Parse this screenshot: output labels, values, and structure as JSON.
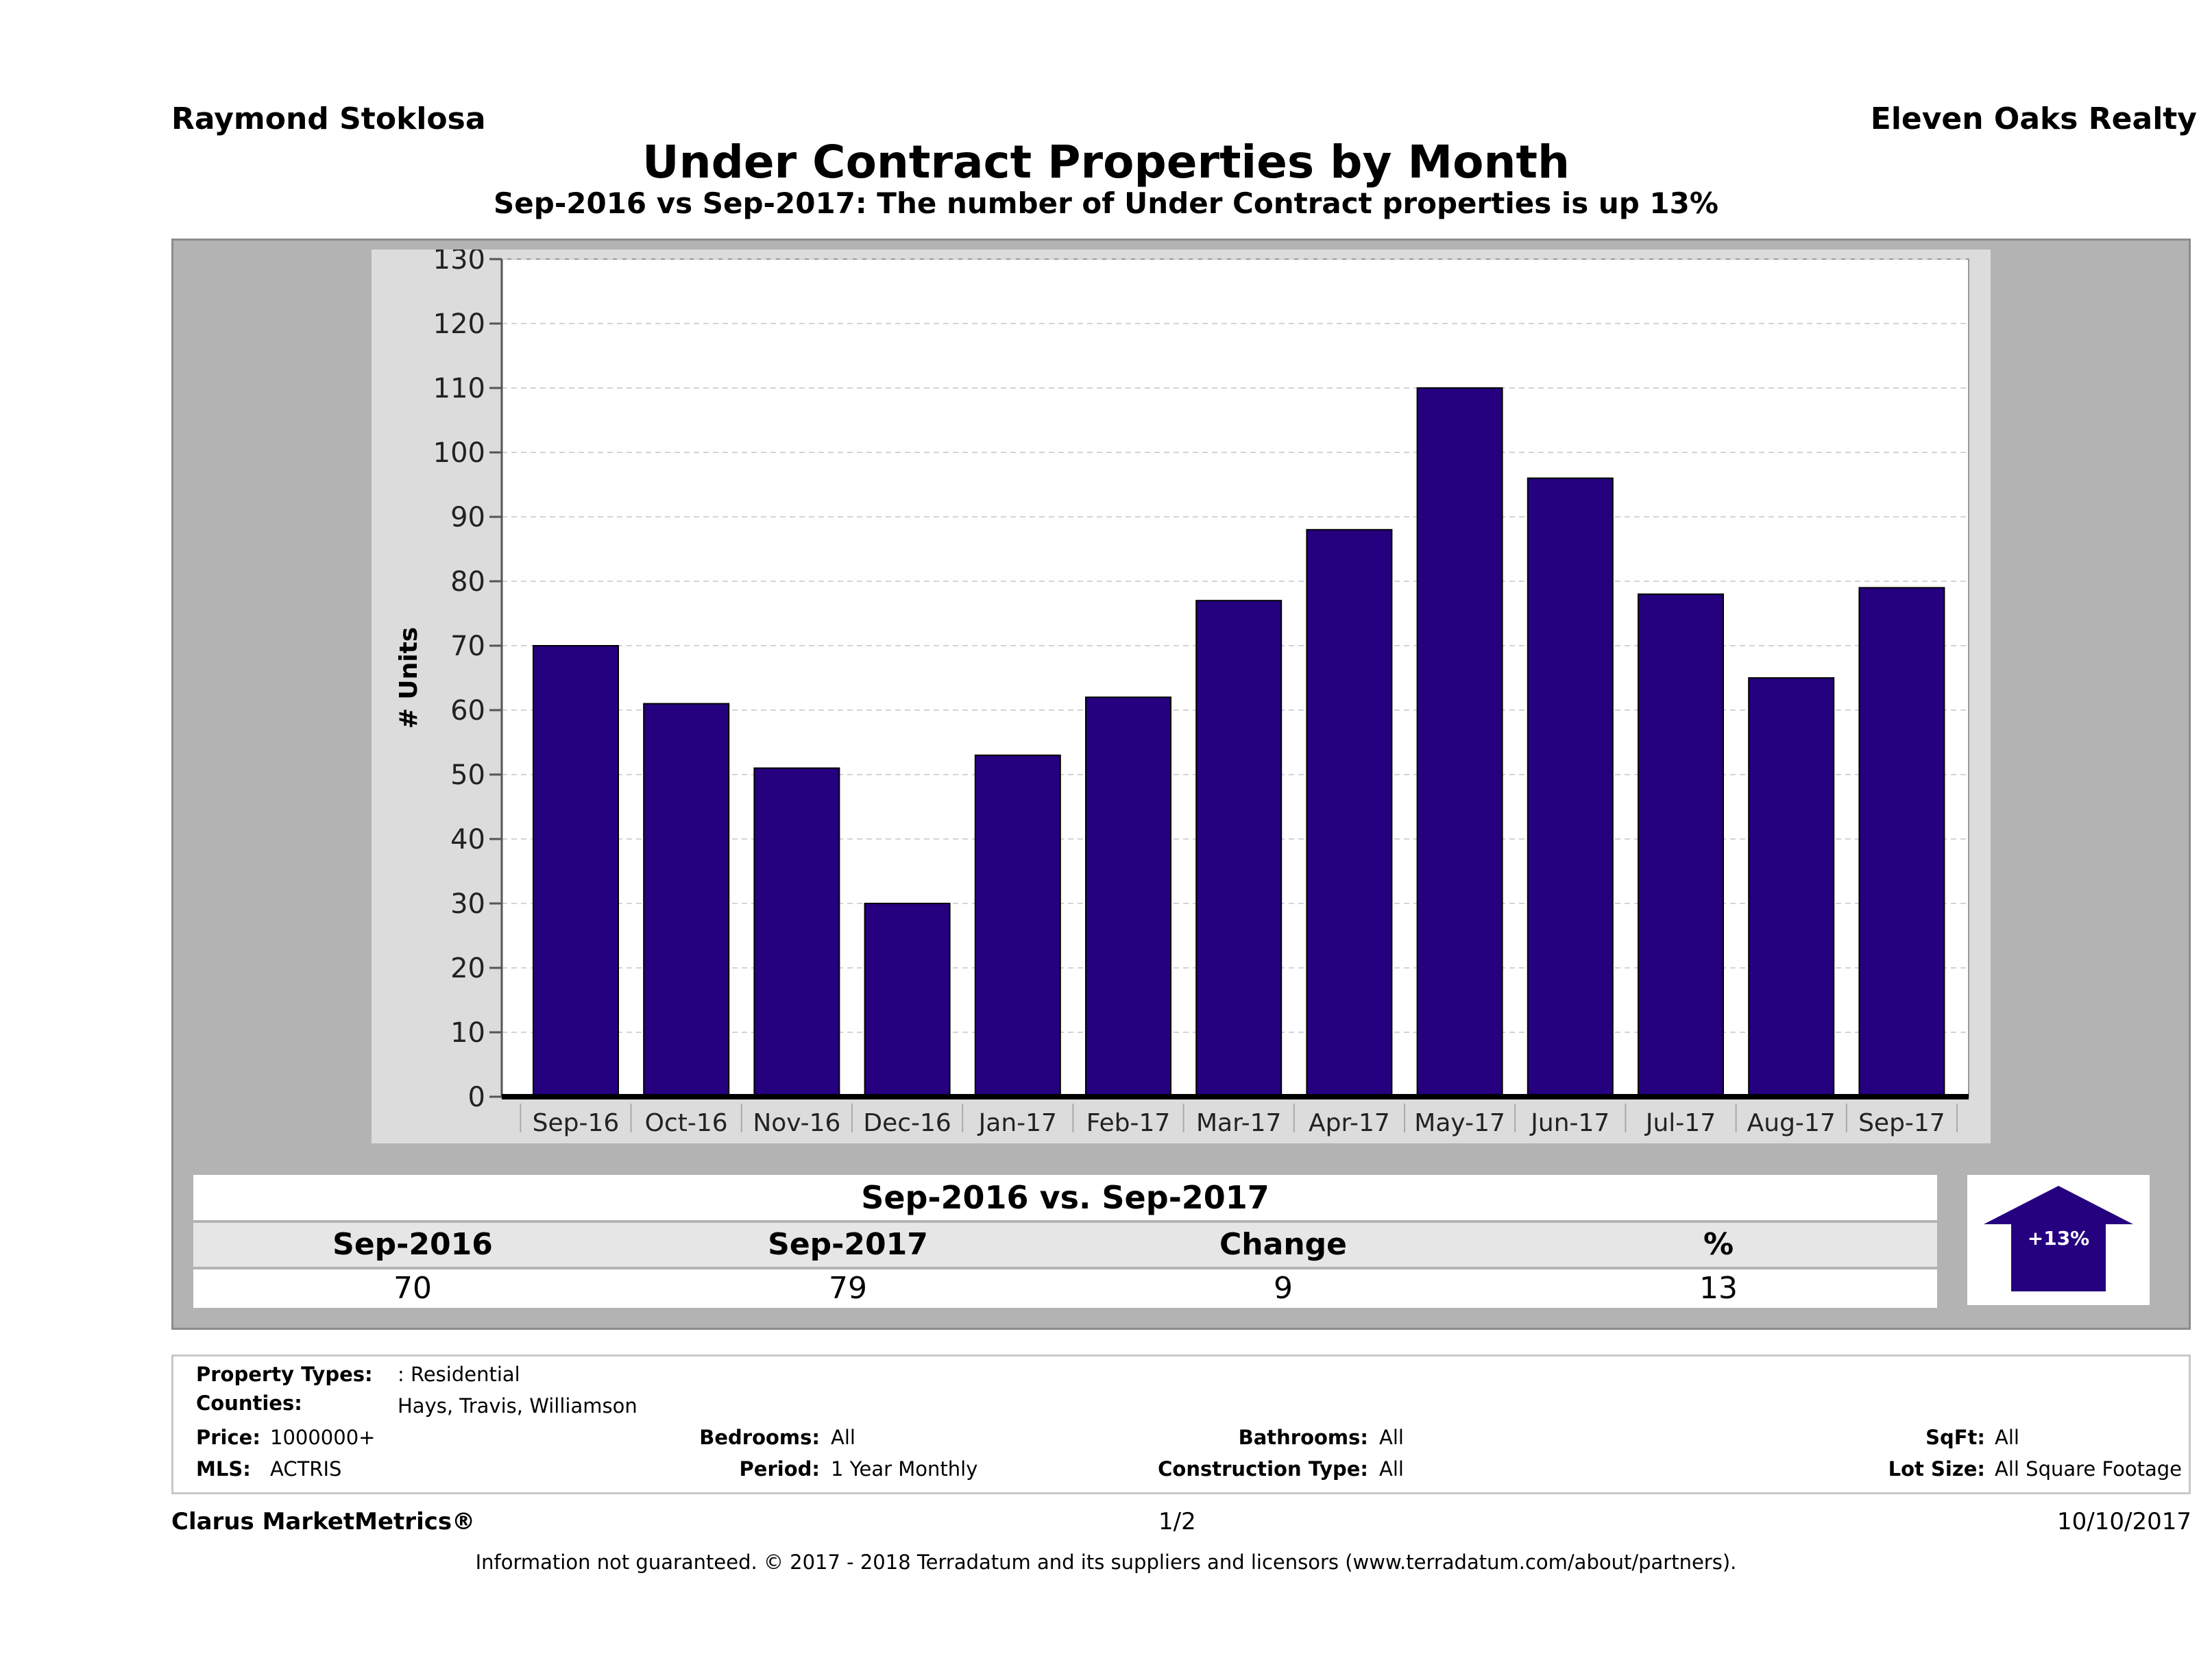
{
  "header": {
    "agent": "Raymond Stoklosa",
    "company": "Eleven Oaks Realty",
    "title": "Under Contract Properties by Month",
    "subtitle": "Sep-2016 vs Sep-2017: The number of Under Contract  properties is up 13%"
  },
  "chart_data": {
    "type": "bar",
    "categories": [
      "Sep-16",
      "Oct-16",
      "Nov-16",
      "Dec-16",
      "Jan-17",
      "Feb-17",
      "Mar-17",
      "Apr-17",
      "May-17",
      "Jun-17",
      "Jul-17",
      "Aug-17",
      "Sep-17"
    ],
    "values": [
      70,
      61,
      51,
      30,
      53,
      62,
      77,
      88,
      110,
      96,
      78,
      65,
      79
    ],
    "ylabel": "# Units",
    "ylim": [
      0,
      130
    ],
    "yticks": [
      0,
      10,
      20,
      30,
      40,
      50,
      60,
      70,
      80,
      90,
      100,
      110,
      120,
      130
    ],
    "bar_color": "#25007f",
    "grid": true
  },
  "summary": {
    "heading": "Sep-2016 vs. Sep-2017",
    "columns": [
      "Sep-2016",
      "Sep-2017",
      "Change",
      "%"
    ],
    "values": [
      "70",
      "79",
      "9",
      "13"
    ],
    "badge": "+13%",
    "badge_color": "#25007f"
  },
  "criteria": {
    "property_types_label": "Property Types:",
    "property_types": ": Residential",
    "counties_label": "Counties:",
    "counties": "Hays, Travis, Williamson",
    "price_label": "Price:",
    "price": "1000000+",
    "mls_label": "MLS:",
    "mls": "ACTRIS",
    "bedrooms_label": "Bedrooms:",
    "bedrooms": "All",
    "period_label": "Period:",
    "period": "1 Year Monthly",
    "bathrooms_label": "Bathrooms:",
    "bathrooms": "All",
    "construction_label": "Construction Type:",
    "construction": "All",
    "sqft_label": "SqFt:",
    "sqft": "All",
    "lot_label": "Lot Size:",
    "lot": "All Square Footage"
  },
  "footer": {
    "brand": "Clarus MarketMetrics®",
    "page": "1/2",
    "date": "10/10/2017",
    "disclaimer": "Information not guaranteed. © 2017 - 2018 Terradatum and its suppliers and licensors (www.terradatum.com/about/partners)."
  }
}
